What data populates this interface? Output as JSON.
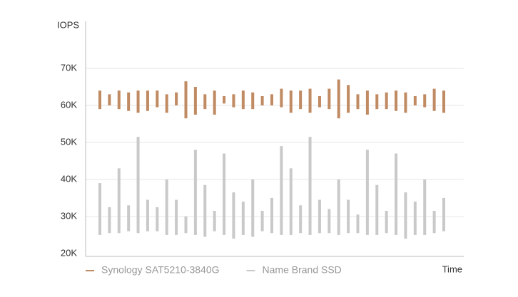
{
  "chart_data": {
    "type": "range-bar",
    "y_label": "IOPS",
    "x_label": "Time",
    "ylim": [
      19200,
      82700
    ],
    "yticks": [
      {
        "value": 20000,
        "label": "20K"
      },
      {
        "value": 30000,
        "label": "30K"
      },
      {
        "value": 40000,
        "label": "40K"
      },
      {
        "value": 50000,
        "label": "50K"
      },
      {
        "value": 60000,
        "label": "60K"
      },
      {
        "value": 70000,
        "label": "70K"
      }
    ],
    "grid": true,
    "legend": "bottom-left",
    "series": [
      {
        "name": "Synology SAT5210-3840G",
        "color": "#c08a62",
        "low": [
          59000,
          60000,
          59000,
          58500,
          58000,
          58500,
          59500,
          58000,
          60000,
          56500,
          57500,
          59000,
          57500,
          60500,
          59500,
          59000,
          59000,
          60000,
          60000,
          59500,
          58000,
          59000,
          58000,
          59500,
          59000,
          56500,
          58000,
          59000,
          57500,
          59000,
          59000,
          58500,
          58000,
          60000,
          59500,
          58500,
          58000
        ],
        "high": [
          64000,
          63000,
          64000,
          63500,
          64000,
          64000,
          64000,
          63000,
          63500,
          66500,
          65000,
          63000,
          64000,
          62500,
          63000,
          64000,
          63500,
          62500,
          63000,
          64500,
          64000,
          64000,
          64500,
          62500,
          64500,
          67000,
          65500,
          63000,
          64000,
          63000,
          63500,
          64000,
          63500,
          62500,
          63000,
          64500,
          64000
        ]
      },
      {
        "name": "Name Brand SSD",
        "color": "#c9c9c9",
        "low": [
          25000,
          25500,
          25500,
          26000,
          25500,
          26000,
          26000,
          25000,
          25000,
          25500,
          25000,
          24500,
          26000,
          25000,
          24000,
          25000,
          24500,
          26000,
          25500,
          25000,
          25000,
          25500,
          25000,
          25500,
          25500,
          25000,
          25500,
          25500,
          25000,
          25000,
          25500,
          25000,
          24000,
          25000,
          25000,
          25500,
          26000
        ],
        "high": [
          39000,
          32500,
          43000,
          33000,
          51500,
          34500,
          32500,
          40000,
          34500,
          30000,
          48000,
          38500,
          31500,
          47000,
          36500,
          34000,
          40000,
          31500,
          35000,
          49000,
          43000,
          33000,
          51500,
          34500,
          32000,
          40000,
          34500,
          30500,
          48000,
          38500,
          31500,
          47000,
          36500,
          34000,
          40000,
          31500,
          35000
        ]
      }
    ]
  }
}
